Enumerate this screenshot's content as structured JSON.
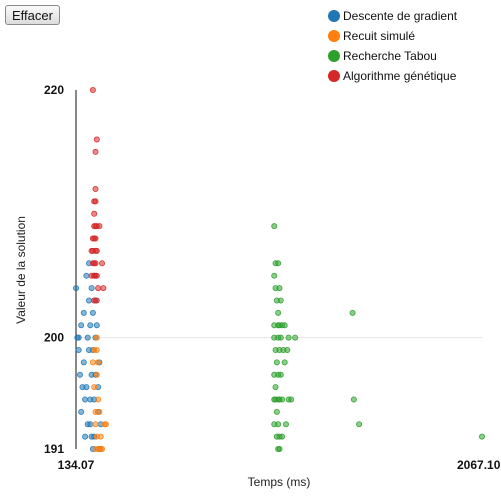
{
  "toolbar": {
    "clear_label": "Effacer"
  },
  "legend": [
    {
      "label": "Descente de gradient",
      "color": "#1f77b4"
    },
    {
      "label": "Recuit simulé",
      "color": "#ff7f0e"
    },
    {
      "label": "Recherche Tabou",
      "color": "#2ca02c"
    },
    {
      "label": "Algorithme génétique",
      "color": "#d62728"
    }
  ],
  "chart_data": {
    "type": "scatter",
    "xlabel": "Temps (ms)",
    "ylabel": "Valeur de la solution",
    "xlim": [
      134.07,
      2067.1
    ],
    "ylim": [
      191,
      220
    ],
    "x_ticks": [
      "134.07",
      "2067.10"
    ],
    "y_ticks": [
      "220",
      "200",
      "191"
    ],
    "gridline_y": 200,
    "series": [
      {
        "name": "Descente de gradient",
        "color": "#1f77b4",
        "points": [
          [
            134.3,
            204
          ],
          [
            140.5,
            200
          ],
          [
            146.7,
            200
          ],
          [
            158.7,
            201
          ],
          [
            171.1,
            202
          ],
          [
            177.3,
            195
          ],
          [
            183.5,
            205
          ],
          [
            146.7,
            199
          ],
          [
            152.9,
            197
          ],
          [
            158.7,
            194
          ],
          [
            164.9,
            196
          ],
          [
            171.1,
            198
          ],
          [
            177.3,
            192
          ],
          [
            183.5,
            196
          ],
          [
            189.7,
            193
          ],
          [
            189.7,
            200
          ],
          [
            195.9,
            206
          ],
          [
            195.9,
            199
          ],
          [
            195.9,
            203
          ],
          [
            202.1,
            193
          ],
          [
            202.1,
            201
          ],
          [
            202.1,
            195
          ],
          [
            208.3,
            197
          ],
          [
            208.3,
            192
          ],
          [
            208.3,
            204
          ],
          [
            214.5,
            191
          ],
          [
            214.5,
            199
          ],
          [
            214.5,
            202
          ],
          [
            220.7,
            205
          ],
          [
            220.7,
            195
          ],
          [
            220.7,
            192
          ],
          [
            226.9,
            197
          ],
          [
            226.9,
            203
          ],
          [
            226.9,
            200
          ],
          [
            233.1,
            201
          ],
          [
            239.3,
            196
          ],
          [
            239.3,
            194
          ],
          [
            245.5,
            198
          ],
          [
            245.5,
            191
          ],
          [
            251.7,
            193
          ]
        ]
      },
      {
        "name": "Recuit simulé",
        "color": "#ff7f0e",
        "points": [
          [
            214.5,
            198
          ],
          [
            220.7,
            196
          ],
          [
            226.9,
            194
          ],
          [
            226.9,
            191
          ],
          [
            226.9,
            193
          ],
          [
            233.1,
            199
          ],
          [
            233.1,
            197
          ],
          [
            233.1,
            192
          ],
          [
            233.1,
            200
          ],
          [
            239.3,
            195
          ],
          [
            239.3,
            191
          ],
          [
            239.3,
            198
          ],
          [
            245.5,
            194
          ],
          [
            251.7,
            191
          ],
          [
            251.7,
            192
          ],
          [
            258.0,
            191
          ],
          [
            270.4,
            193
          ],
          [
            276.6,
            193
          ],
          [
            220.7,
            199
          ]
        ]
      },
      {
        "name": "Recherche Tabou",
        "color": "#2ca02c",
        "points": [
          [
            1078.0,
            209
          ],
          [
            1078.0,
            205
          ],
          [
            1078.0,
            201
          ],
          [
            1078.0,
            200
          ],
          [
            1078.0,
            197
          ],
          [
            1078.0,
            195
          ],
          [
            1078.0,
            193
          ],
          [
            1084.2,
            206
          ],
          [
            1084.2,
            204
          ],
          [
            1084.2,
            199
          ],
          [
            1084.2,
            196
          ],
          [
            1084.2,
            195
          ],
          [
            1090.4,
            203
          ],
          [
            1090.4,
            198
          ],
          [
            1090.4,
            194
          ],
          [
            1090.4,
            192
          ],
          [
            1096.6,
            206
          ],
          [
            1096.6,
            202
          ],
          [
            1096.6,
            201
          ],
          [
            1096.6,
            200
          ],
          [
            1096.6,
            197
          ],
          [
            1096.6,
            195
          ],
          [
            1096.6,
            193
          ],
          [
            1096.6,
            191
          ],
          [
            1102.8,
            204
          ],
          [
            1102.8,
            201
          ],
          [
            1102.8,
            199
          ],
          [
            1102.8,
            195
          ],
          [
            1102.8,
            192
          ],
          [
            1102.8,
            191
          ],
          [
            1109.0,
            203
          ],
          [
            1109.0,
            200
          ],
          [
            1109.0,
            197
          ],
          [
            1115.2,
            201
          ],
          [
            1115.2,
            195
          ],
          [
            1115.2,
            192
          ],
          [
            1121.4,
            199
          ],
          [
            1127.6,
            198
          ],
          [
            1127.6,
            201
          ],
          [
            1133.8,
            193
          ],
          [
            1140.0,
            199
          ],
          [
            1146.2,
            195
          ],
          [
            1146.2,
            200
          ],
          [
            1158.6,
            195
          ],
          [
            1177.3,
            200
          ],
          [
            1450.8,
            202
          ],
          [
            1457.0,
            195
          ],
          [
            1481.9,
            193
          ],
          [
            2067.1,
            192
          ]
        ]
      },
      {
        "name": "Algorithme génétique",
        "color": "#d62728",
        "points": [
          [
            214.5,
            220
          ],
          [
            233.1,
            216
          ],
          [
            226.9,
            215
          ],
          [
            226.9,
            212
          ],
          [
            220.7,
            211
          ],
          [
            226.9,
            209
          ],
          [
            220.7,
            209
          ],
          [
            214.5,
            208
          ],
          [
            214.5,
            207
          ],
          [
            214.5,
            206
          ],
          [
            220.7,
            208
          ],
          [
            220.7,
            206
          ],
          [
            220.7,
            205
          ],
          [
            226.9,
            208
          ],
          [
            226.9,
            207
          ],
          [
            226.9,
            206
          ],
          [
            226.9,
            205
          ],
          [
            233.1,
            209
          ],
          [
            233.1,
            207
          ],
          [
            233.1,
            205
          ],
          [
            239.3,
            204
          ],
          [
            233.1,
            203
          ],
          [
            220.7,
            203
          ],
          [
            208.3,
            207
          ],
          [
            208.3,
            205
          ],
          [
            245.5,
            209
          ],
          [
            258.0,
            206
          ],
          [
            264.2,
            204
          ],
          [
            220.7,
            210
          ],
          [
            226.9,
            211
          ]
        ]
      }
    ]
  }
}
